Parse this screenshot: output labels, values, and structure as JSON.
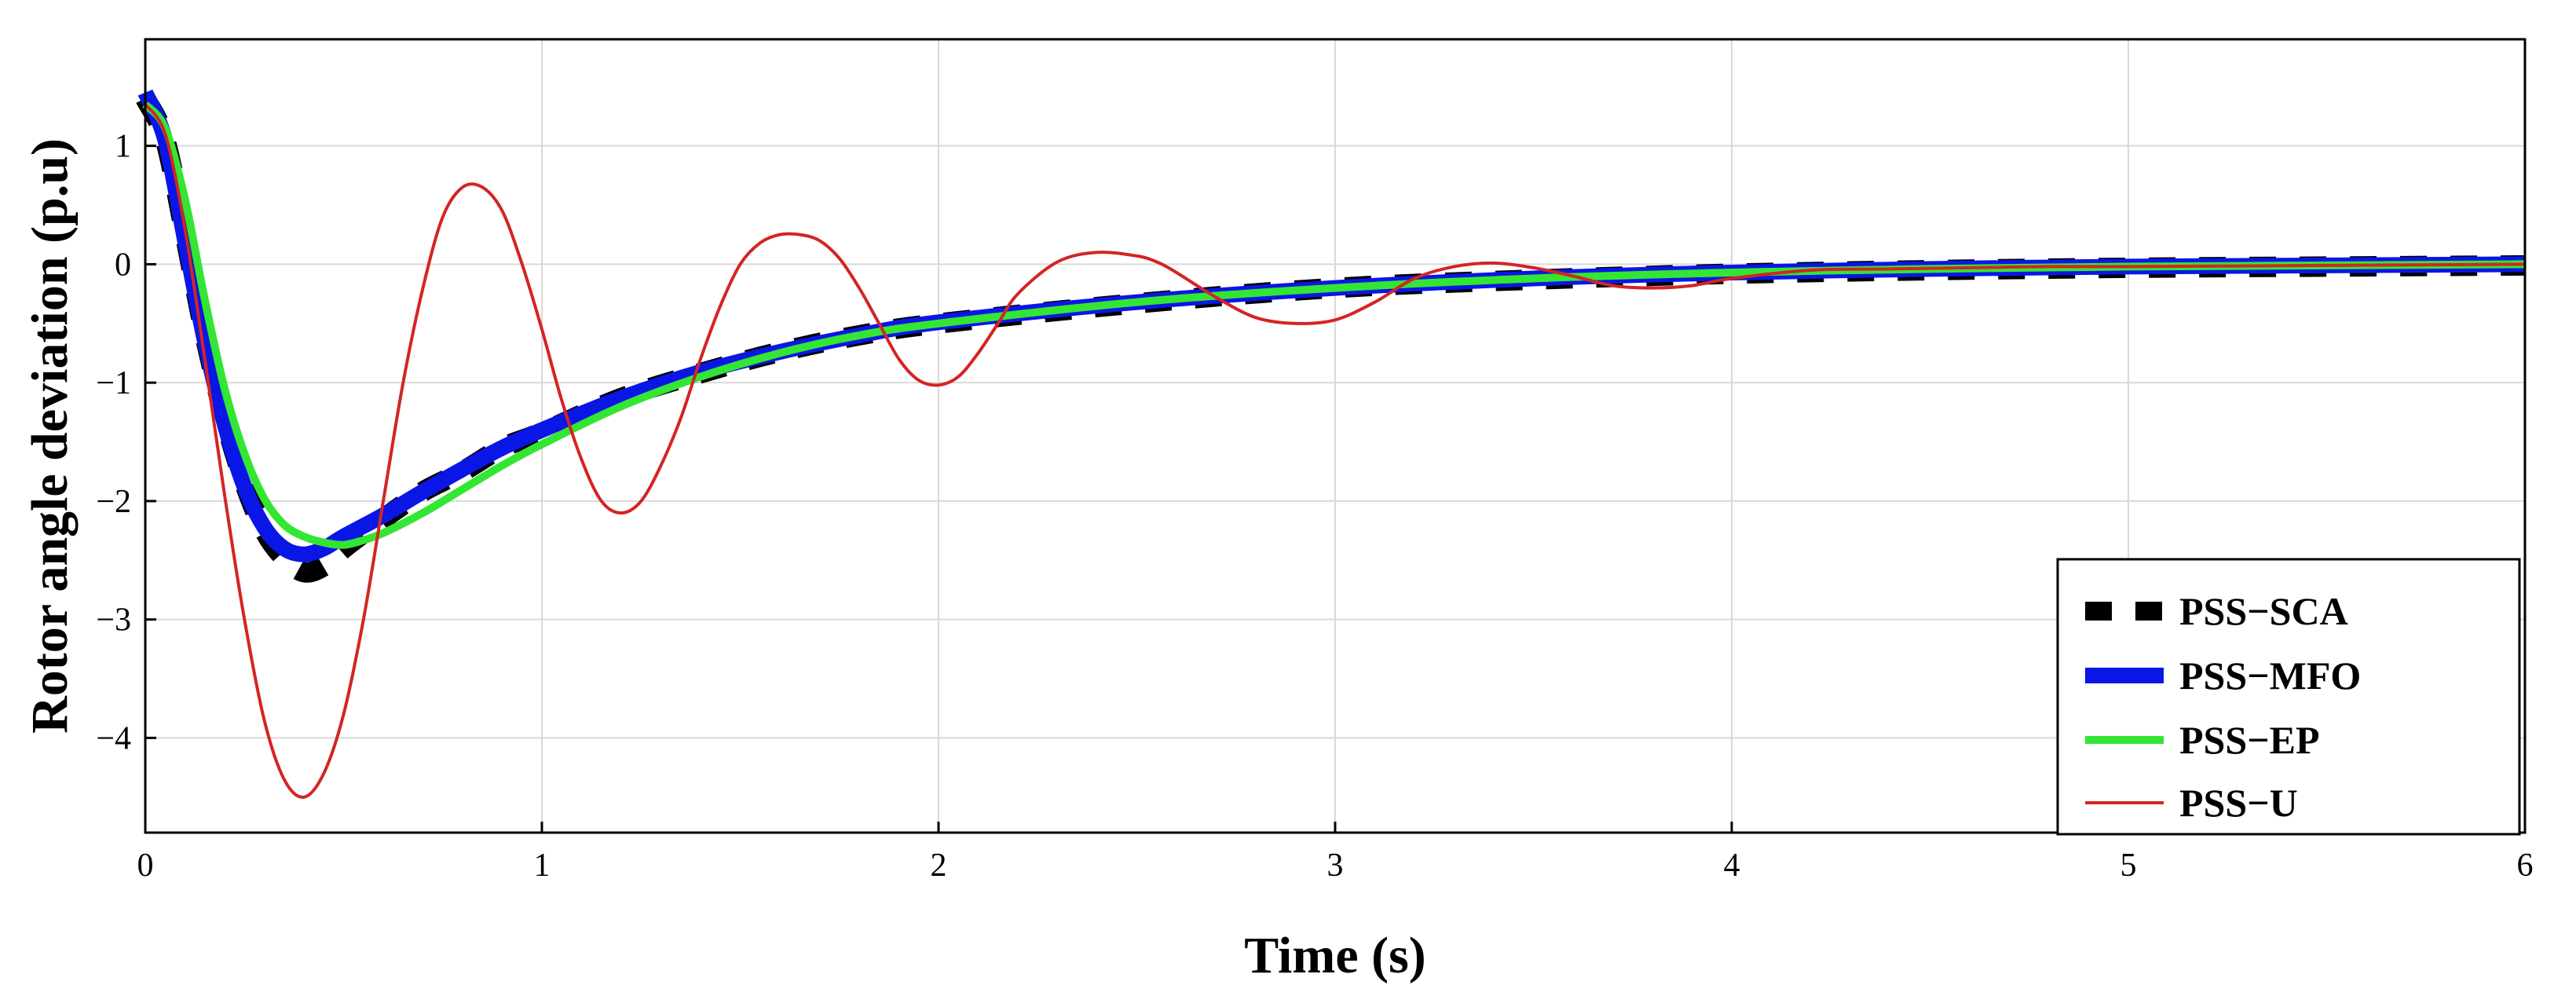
{
  "chart_data": {
    "type": "line",
    "xlabel": "Time (s)",
    "ylabel": "Rotor angle deviation (p.u)",
    "xlim": [
      0,
      6
    ],
    "ylim": [
      -4.8,
      1.9
    ],
    "xticks": [
      0,
      1,
      2,
      3,
      4,
      5,
      6
    ],
    "yticks": [
      1,
      0,
      -1,
      -2,
      -3,
      -4
    ],
    "ytick_labels": [
      "1",
      "0",
      "−1",
      "−2",
      "−3",
      "−4"
    ],
    "grid": true,
    "legend_position": "bottom-right",
    "series": [
      {
        "name": "PSS−SCA",
        "color": "#000000",
        "style": "thick-dashed",
        "x": [
          0,
          0.05,
          0.1,
          0.15,
          0.2,
          0.25,
          0.3,
          0.35,
          0.4,
          0.45,
          0.5,
          0.6,
          0.7,
          0.8,
          0.9,
          1.0,
          1.2,
          1.4,
          1.6,
          1.8,
          2.0,
          2.5,
          3.0,
          3.5,
          4.0,
          4.5,
          5.0,
          5.5,
          6.0
        ],
        "y": [
          1.4,
          1.05,
          0.25,
          -0.6,
          -1.3,
          -1.85,
          -2.25,
          -2.48,
          -2.6,
          -2.55,
          -2.4,
          -2.15,
          -1.92,
          -1.75,
          -1.55,
          -1.42,
          -1.13,
          -0.92,
          -0.74,
          -0.6,
          -0.5,
          -0.33,
          -0.2,
          -0.13,
          -0.08,
          -0.05,
          -0.03,
          -0.02,
          -0.01
        ]
      },
      {
        "name": "PSS−MFO",
        "color": "#0a16e6",
        "style": "thick",
        "x": [
          0,
          0.05,
          0.1,
          0.15,
          0.2,
          0.25,
          0.3,
          0.35,
          0.4,
          0.45,
          0.5,
          0.6,
          0.7,
          0.8,
          0.9,
          1.0,
          1.2,
          1.4,
          1.6,
          1.8,
          2.0,
          2.5,
          3.0,
          3.5,
          4.0,
          4.5,
          5.0,
          5.5,
          6.0
        ],
        "y": [
          1.45,
          1.05,
          0.2,
          -0.65,
          -1.35,
          -1.88,
          -2.22,
          -2.4,
          -2.45,
          -2.4,
          -2.3,
          -2.12,
          -1.92,
          -1.73,
          -1.55,
          -1.4,
          -1.13,
          -0.91,
          -0.74,
          -0.6,
          -0.49,
          -0.32,
          -0.2,
          -0.12,
          -0.07,
          -0.04,
          -0.02,
          -0.01,
          0.0
        ]
      },
      {
        "name": "PSS−EP",
        "color": "#33e633",
        "style": "medium",
        "x": [
          0,
          0.05,
          0.1,
          0.15,
          0.2,
          0.25,
          0.3,
          0.35,
          0.4,
          0.45,
          0.5,
          0.55,
          0.6,
          0.7,
          0.8,
          0.9,
          1.0,
          1.2,
          1.4,
          1.6,
          1.8,
          2.0,
          2.5,
          3.0,
          3.5,
          4.0,
          4.5,
          5.0,
          5.5,
          6.0
        ],
        "y": [
          1.35,
          1.15,
          0.55,
          -0.3,
          -1.05,
          -1.6,
          -1.98,
          -2.2,
          -2.3,
          -2.35,
          -2.37,
          -2.33,
          -2.27,
          -2.1,
          -1.9,
          -1.7,
          -1.52,
          -1.2,
          -0.95,
          -0.75,
          -0.6,
          -0.5,
          -0.32,
          -0.2,
          -0.12,
          -0.07,
          -0.04,
          -0.02,
          -0.01,
          0.0
        ]
      },
      {
        "name": "PSS−U",
        "color": "#d42424",
        "style": "thin",
        "x": [
          0,
          0.05,
          0.1,
          0.15,
          0.2,
          0.25,
          0.3,
          0.35,
          0.4,
          0.45,
          0.5,
          0.55,
          0.6,
          0.65,
          0.7,
          0.75,
          0.8,
          0.85,
          0.9,
          0.95,
          1.0,
          1.05,
          1.1,
          1.15,
          1.2,
          1.25,
          1.3,
          1.35,
          1.4,
          1.45,
          1.5,
          1.55,
          1.6,
          1.65,
          1.7,
          1.75,
          1.8,
          1.85,
          1.9,
          1.95,
          2.0,
          2.05,
          2.1,
          2.15,
          2.2,
          2.3,
          2.4,
          2.5,
          2.55,
          2.6,
          2.7,
          2.8,
          2.9,
          3.0,
          3.1,
          3.2,
          3.3,
          3.4,
          3.5,
          3.6,
          3.7,
          3.8,
          3.9,
          4.0,
          4.2,
          4.4,
          4.6,
          4.8,
          5.0,
          5.5,
          6.0
        ],
        "y": [
          1.35,
          1.1,
          0.3,
          -0.8,
          -1.95,
          -3.0,
          -3.85,
          -4.35,
          -4.5,
          -4.3,
          -3.8,
          -3.0,
          -2.0,
          -1.0,
          -0.2,
          0.4,
          0.65,
          0.65,
          0.45,
          0.0,
          -0.55,
          -1.15,
          -1.65,
          -2.0,
          -2.1,
          -2.0,
          -1.7,
          -1.3,
          -0.8,
          -0.35,
          0.0,
          0.18,
          0.25,
          0.25,
          0.2,
          0.05,
          -0.2,
          -0.5,
          -0.8,
          -0.98,
          -1.02,
          -0.95,
          -0.75,
          -0.5,
          -0.25,
          0.02,
          0.1,
          0.07,
          0.02,
          -0.07,
          -0.28,
          -0.45,
          -0.5,
          -0.47,
          -0.32,
          -0.12,
          -0.02,
          0.01,
          -0.03,
          -0.1,
          -0.18,
          -0.2,
          -0.18,
          -0.12,
          -0.05,
          -0.04,
          -0.03,
          -0.02,
          -0.02,
          -0.01,
          0.0
        ]
      }
    ]
  }
}
